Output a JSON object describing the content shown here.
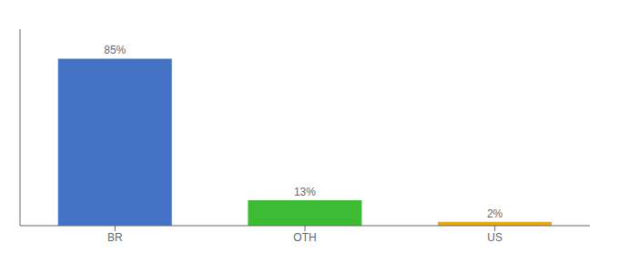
{
  "chart_data": {
    "type": "bar",
    "categories": [
      "BR",
      "OTH",
      "US"
    ],
    "values": [
      85,
      13,
      2
    ],
    "value_labels": [
      "85%",
      "13%",
      "2%"
    ],
    "colors": [
      "#4472c4",
      "#3dbb35",
      "#e6a817"
    ],
    "ylim": [
      0,
      100
    ],
    "data_labels": true,
    "tick_labels": "x"
  }
}
